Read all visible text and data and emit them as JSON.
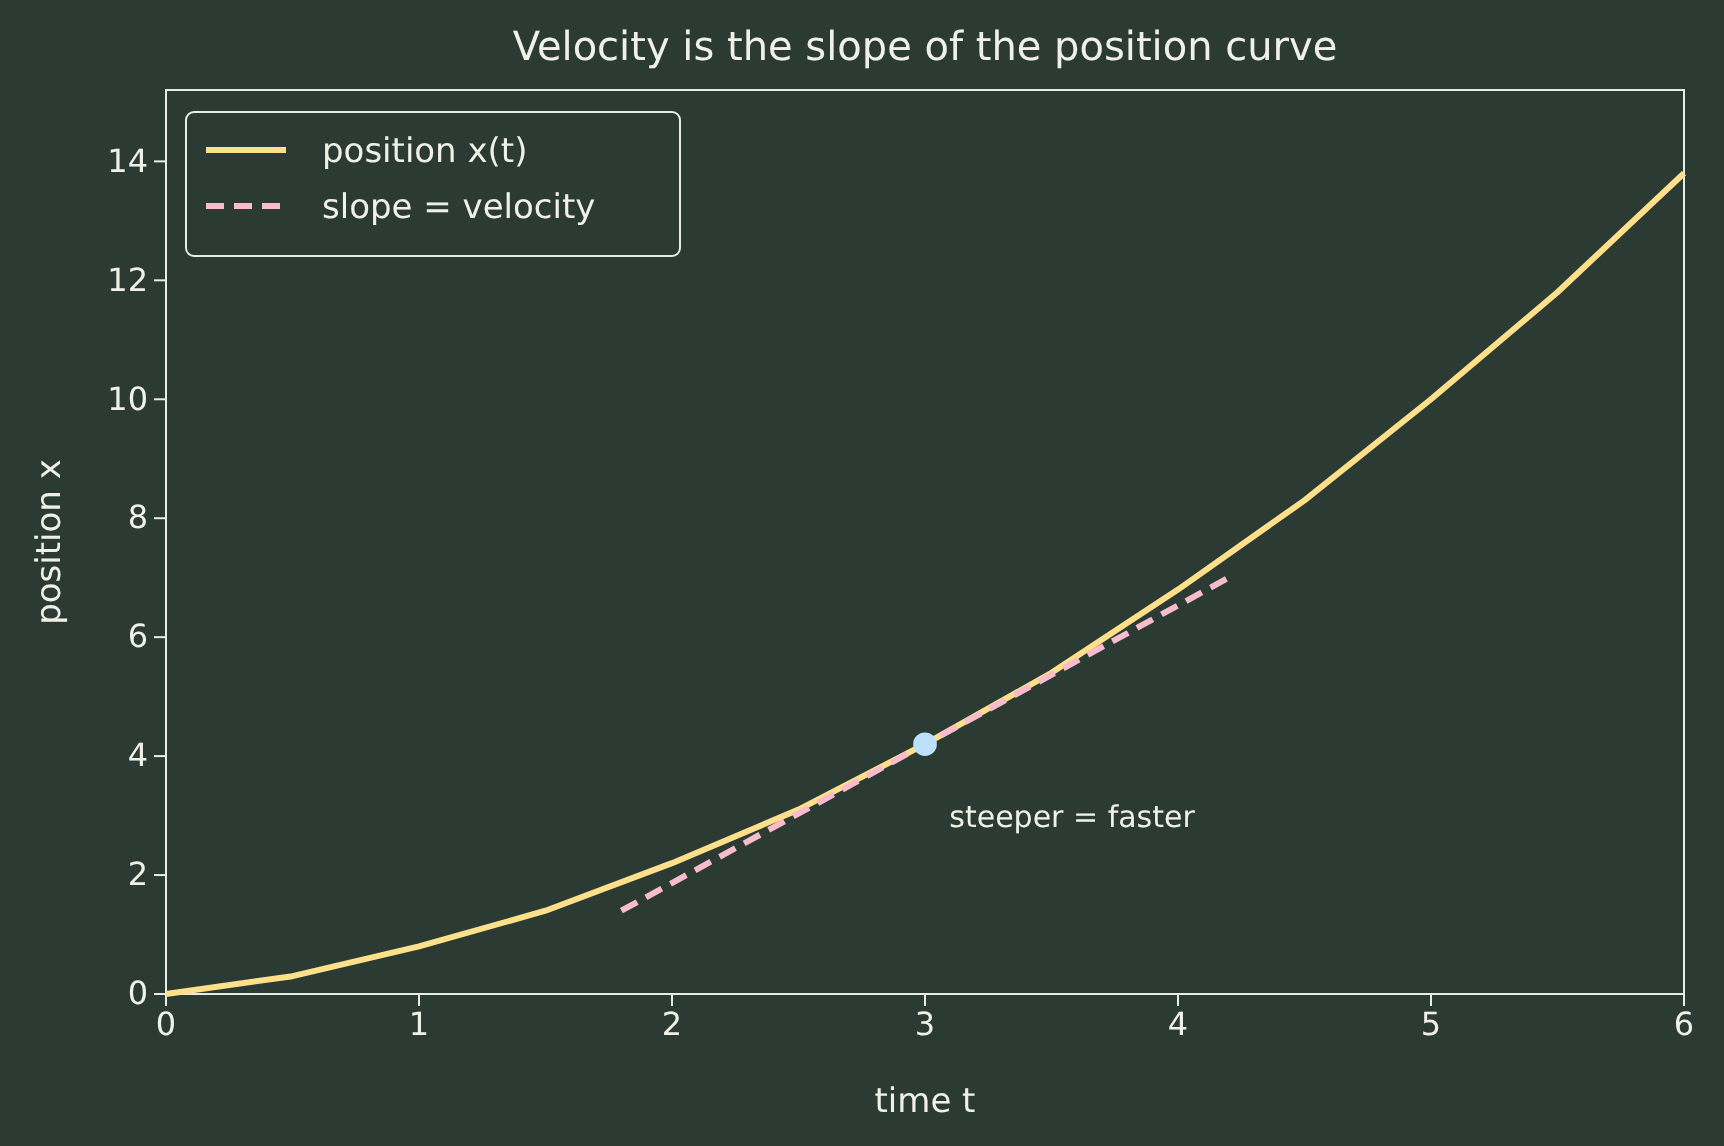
{
  "chart_data": {
    "type": "line",
    "title": "Velocity is the slope of the position curve",
    "xlabel": "time t",
    "ylabel": "position x",
    "xlim": [
      0,
      6
    ],
    "ylim": [
      0,
      15.2
    ],
    "xticks": [
      0,
      1,
      2,
      3,
      4,
      5,
      6
    ],
    "yticks": [
      0,
      2,
      4,
      6,
      8,
      10,
      12,
      14
    ],
    "grid": false,
    "legend": "top left",
    "series": [
      {
        "name": "position x(t)",
        "color": "#ffe08a",
        "x": [
          0,
          0.5,
          1,
          1.5,
          2,
          2.5,
          3,
          3.5,
          4,
          4.5,
          5,
          5.5,
          6
        ],
        "values": [
          0,
          0.3,
          0.8,
          1.4,
          2.2,
          3.1,
          4.2,
          5.4,
          6.8,
          8.3,
          10,
          11.8,
          13.8
        ],
        "line_style": "solid"
      },
      {
        "name": "slope = velocity",
        "color": "#f8bbd0",
        "x": [
          1.8,
          4.2
        ],
        "values": [
          1.4,
          7.0
        ],
        "line_style": "dashed"
      },
      {
        "type": "scatter",
        "color": "#bde0fe",
        "x": [
          3
        ],
        "values": [
          4.2
        ],
        "marker": "circle"
      }
    ],
    "annotations": [
      "steeper = faster"
    ]
  }
}
